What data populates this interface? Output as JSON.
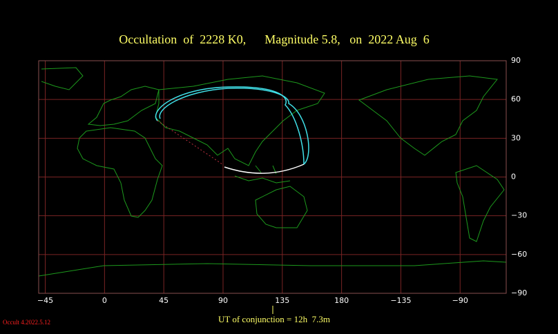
{
  "header": {
    "title": "Occultation  of  2228 K0,      Magnitude 5.8,   on  2022 Aug  6"
  },
  "map": {
    "lon_range": [
      -50,
      305
    ],
    "lat_range": [
      -90,
      90
    ],
    "lon_ticks": [
      {
        "value": -45,
        "label": "−45"
      },
      0,
      45,
      90,
      135,
      180,
      {
        "value": -135,
        "label": "−135"
      },
      {
        "value": -90,
        "label": "−90"
      }
    ],
    "lat_ticks": [
      90,
      60,
      30,
      0,
      {
        "value": -30,
        "label": "−30"
      },
      {
        "value": -60,
        "label": "−60"
      },
      {
        "value": -90,
        "label": "−90"
      }
    ]
  },
  "footer": {
    "conjunction": "UT of conjunction = 12h  7.3m",
    "version": "Occult 4.2022.5.12"
  }
}
